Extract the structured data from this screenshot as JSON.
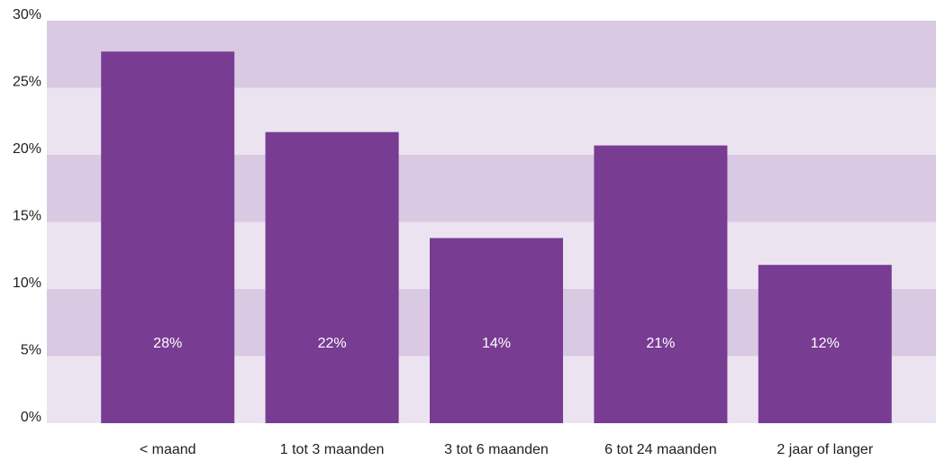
{
  "chart_data": {
    "type": "bar",
    "categories": [
      "< maand",
      "1 tot 3 maanden",
      "3 tot 6 maanden",
      "6 tot 24 maanden",
      "2 jaar of langer"
    ],
    "values": [
      27.7,
      21.7,
      13.8,
      20.7,
      11.8
    ],
    "value_labels": [
      "28%",
      "22%",
      "14%",
      "21%",
      "12%"
    ],
    "color": "#783c93",
    "ylim": [
      0,
      30
    ],
    "yticks": [
      {
        "value": 0,
        "label": "0%"
      },
      {
        "value": 5,
        "label": "5%"
      },
      {
        "value": 10,
        "label": "10%"
      },
      {
        "value": 15,
        "label": "15%"
      },
      {
        "value": 20,
        "label": "20%"
      },
      {
        "value": 25,
        "label": "25%"
      },
      {
        "value": 30,
        "label": "30%"
      }
    ],
    "grid": true,
    "grid_colors": [
      "#ebe3f0",
      "#d9c9e2"
    ]
  }
}
